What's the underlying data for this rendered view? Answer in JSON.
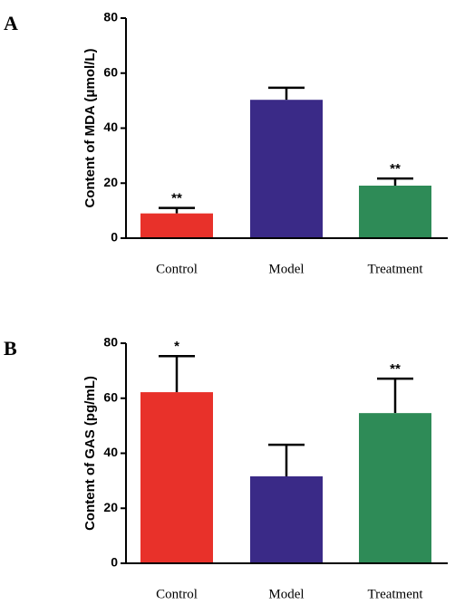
{
  "chart_data": [
    {
      "type": "bar",
      "panel": "A",
      "y_label": "Content of MDA (μmol/L)",
      "categories": [
        "Control",
        "Model",
        "Treatment"
      ],
      "values": [
        9,
        50.3,
        19.1
      ],
      "errors": [
        2,
        4.4,
        2.6
      ],
      "annotations": [
        "**",
        null,
        "**"
      ],
      "colors": [
        "#e8312a",
        "#3a2a87",
        "#2e8b57"
      ],
      "ylim": [
        0,
        80
      ],
      "yticks": [
        0,
        20,
        40,
        60,
        80
      ]
    },
    {
      "type": "bar",
      "panel": "B",
      "y_label": "Content of GAS (pg/mL)",
      "categories": [
        "Control",
        "Model",
        "Treatment"
      ],
      "values": [
        62.2,
        31.6,
        54.6
      ],
      "errors": [
        13.1,
        11.5,
        12.5
      ],
      "annotations": [
        "*",
        null,
        "**"
      ],
      "colors": [
        "#e8312a",
        "#3a2a87",
        "#2e8b57"
      ],
      "ylim": [
        0,
        80
      ],
      "yticks": [
        0,
        20,
        40,
        60,
        80
      ]
    }
  ]
}
